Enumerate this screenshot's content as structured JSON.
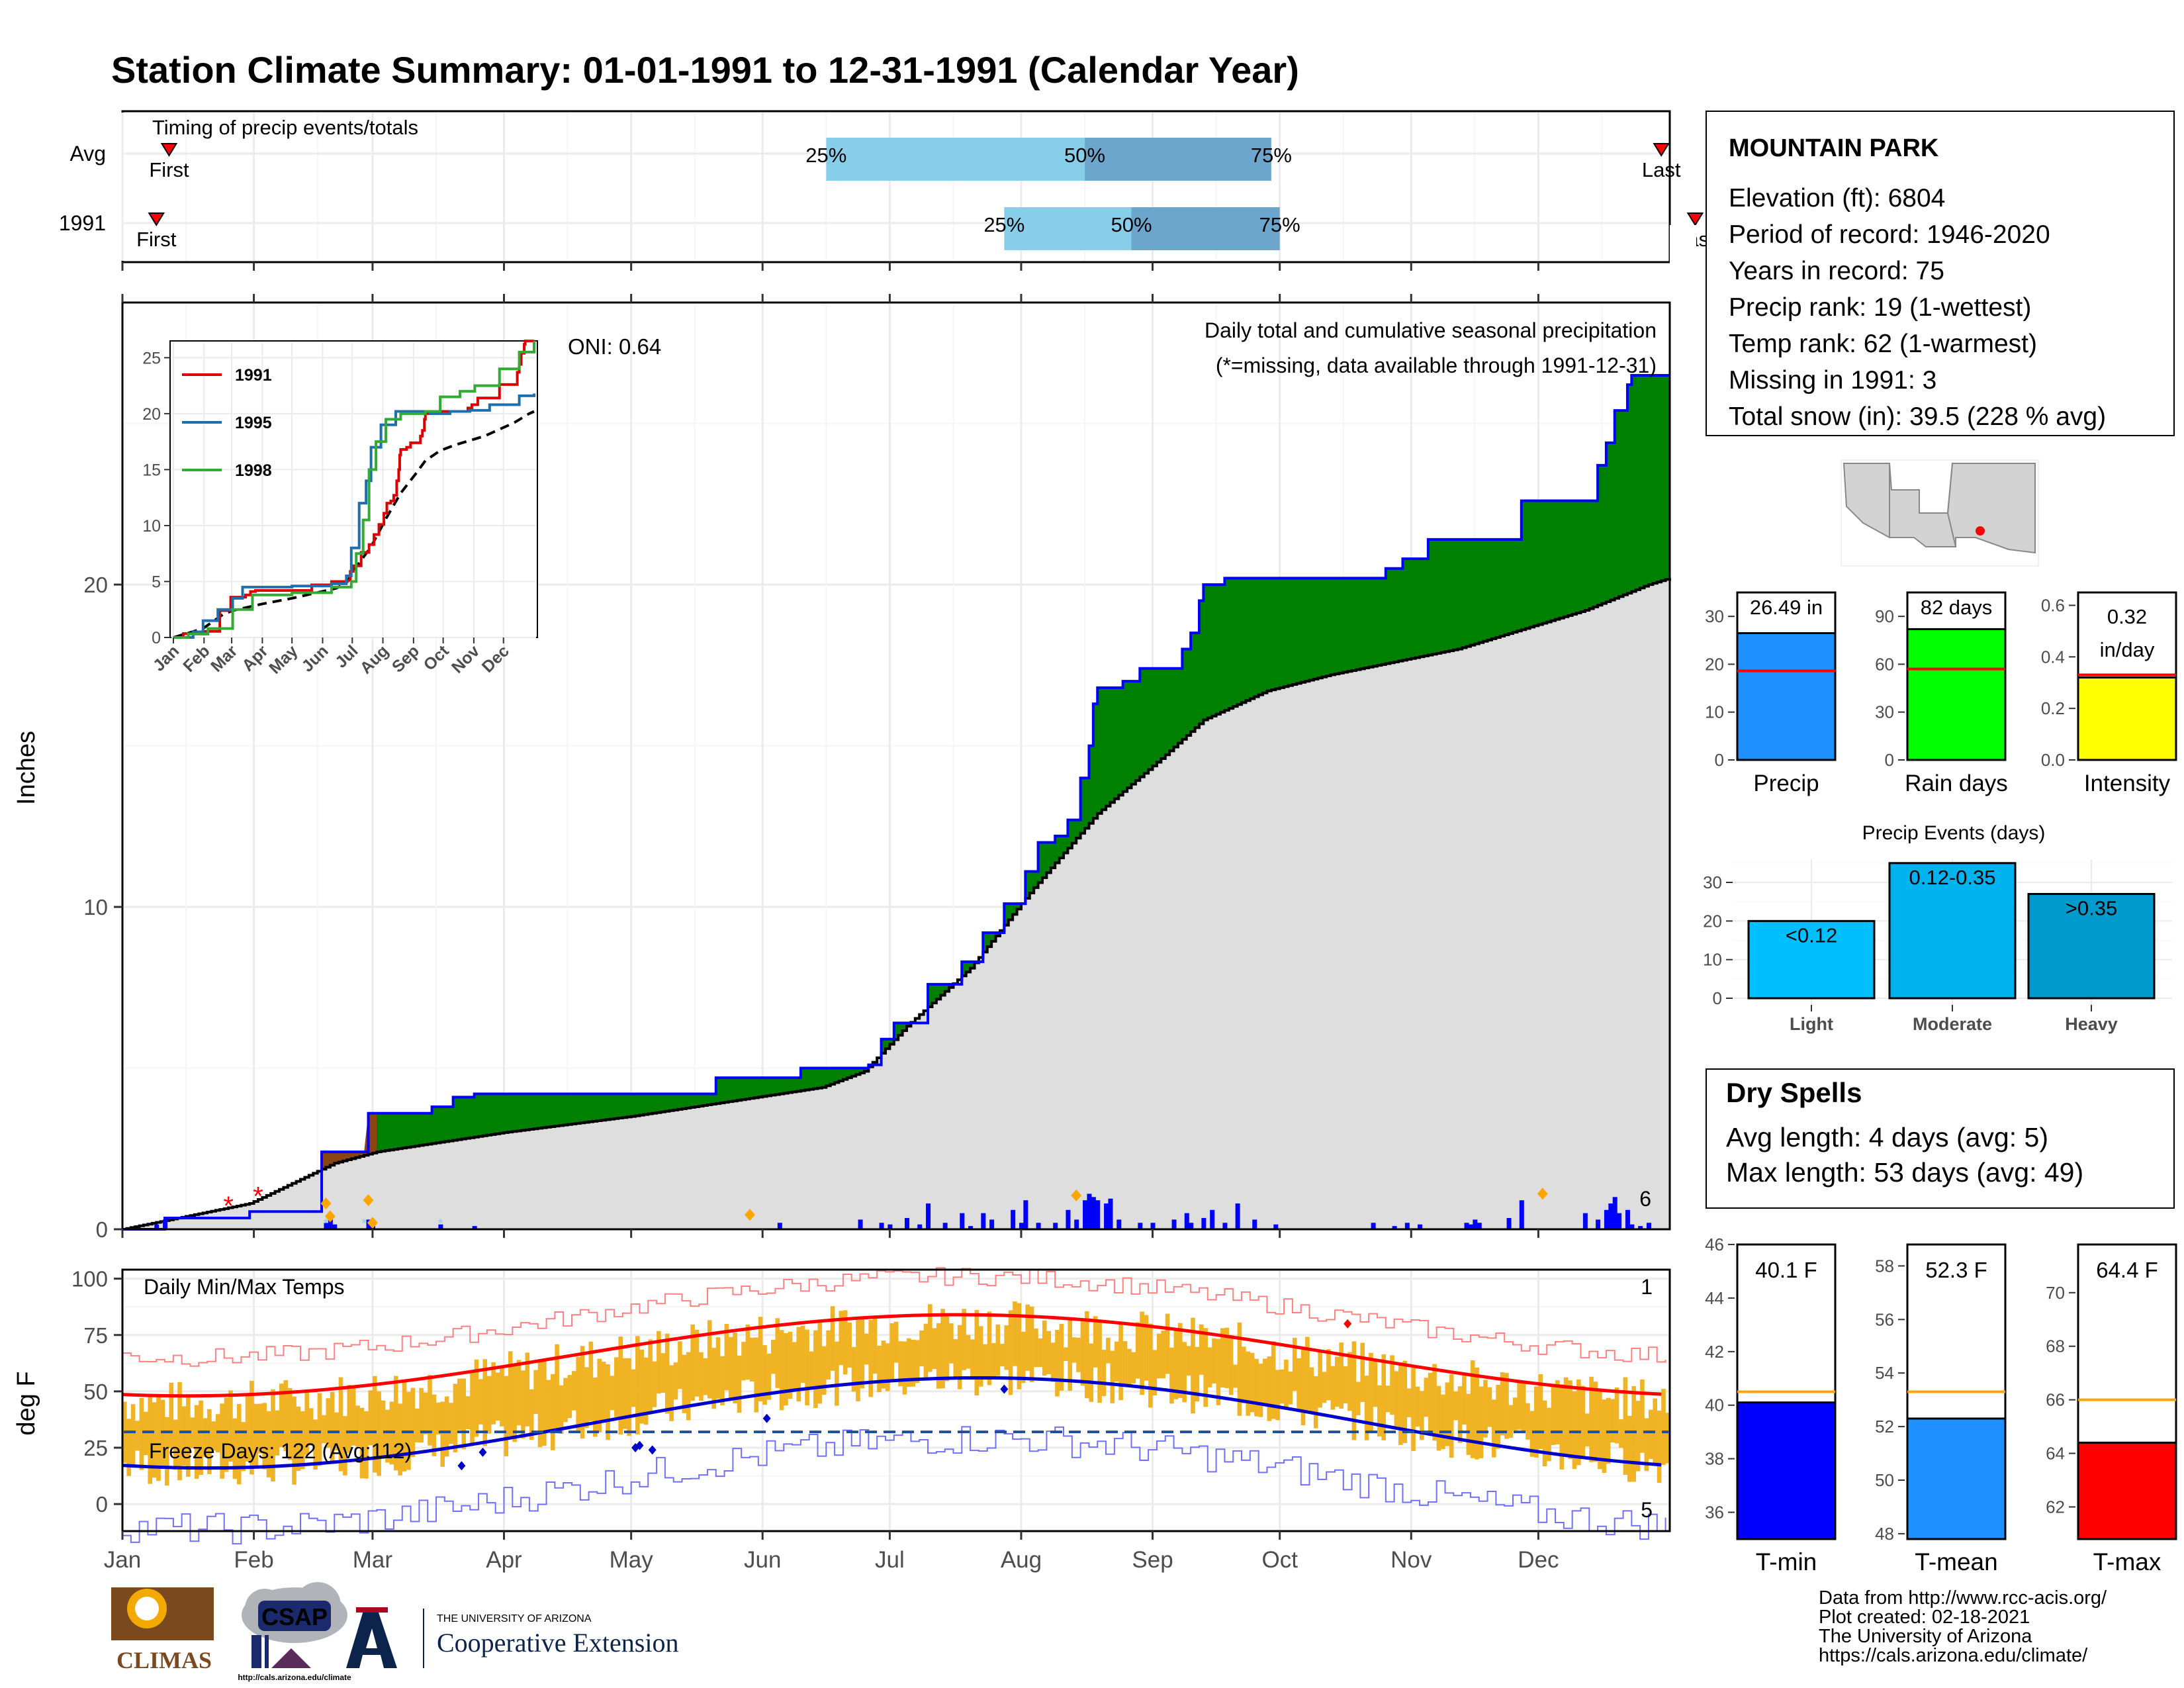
{
  "title": "Station Climate Summary: 01-01-1991 to 12-31-1991 (Calendar Year)",
  "colors": {
    "title": "#000080",
    "cum_green": "#008000",
    "avg_gray": "#dedede",
    "deficit_brown": "#8b4513",
    "bar_blue": "#0000ff",
    "temp_bar": "#f0b323",
    "tmax_line": "#ff0000",
    "tmin_line": "#0000cc",
    "dry_text": "#a52a2a",
    "light_blue": "#87ceeb",
    "steel_blue": "#6ca6cd"
  },
  "timing": {
    "panel_title": "Timing of precip events/totals",
    "rows": [
      {
        "label": "Avg",
        "first": "First",
        "last": "Last",
        "p25": "25%",
        "p50": "50%",
        "p75": "75%"
      },
      {
        "label": "1991",
        "first": "First",
        "last": "Last",
        "p25": "25%",
        "p50": "50%",
        "p75": "75%"
      }
    ],
    "avg_day": {
      "first": 11,
      "p25": 166,
      "p50": 227,
      "p75": 271,
      "last": 363
    },
    "yr_day": {
      "first": 8,
      "p25": 208,
      "p50": 238,
      "p75": 273,
      "last": 371
    }
  },
  "precip": {
    "title": "Daily total and cumulative seasonal precipitation",
    "missing_note": "(*=missing, data available through 1991-12-31)",
    "oni": "ONI: 0.64",
    "ylabel": "Inches",
    "yticks": [
      "0",
      "10",
      "20"
    ],
    "count_label": "6",
    "cum_1991": [
      [
        0,
        0
      ],
      [
        10,
        0
      ],
      [
        10,
        0.35
      ],
      [
        30,
        0.35
      ],
      [
        30,
        0.55
      ],
      [
        47,
        0.55
      ],
      [
        47,
        2.4
      ],
      [
        58,
        2.4
      ],
      [
        58,
        3.6
      ],
      [
        73,
        3.6
      ],
      [
        73,
        3.8
      ],
      [
        78,
        3.8
      ],
      [
        78,
        4.1
      ],
      [
        83,
        4.1
      ],
      [
        83,
        4.2
      ],
      [
        140,
        4.2
      ],
      [
        140,
        4.7
      ],
      [
        160,
        4.7
      ],
      [
        160,
        5.0
      ],
      [
        176,
        5.0
      ],
      [
        176,
        5.1
      ],
      [
        179,
        5.1
      ],
      [
        179,
        5.9
      ],
      [
        182,
        5.9
      ],
      [
        182,
        6.4
      ],
      [
        190,
        6.4
      ],
      [
        190,
        7.6
      ],
      [
        198,
        7.6
      ],
      [
        198,
        8.3
      ],
      [
        203,
        8.3
      ],
      [
        203,
        9.2
      ],
      [
        208,
        9.2
      ],
      [
        208,
        10.1
      ],
      [
        213,
        10.1
      ],
      [
        213,
        11.1
      ],
      [
        216,
        11.1
      ],
      [
        216,
        12.0
      ],
      [
        220,
        12.0
      ],
      [
        220,
        12.2
      ],
      [
        223,
        12.2
      ],
      [
        223,
        12.7
      ],
      [
        226,
        12.7
      ],
      [
        226,
        14.0
      ],
      [
        228,
        14.0
      ],
      [
        228,
        15.0
      ],
      [
        229,
        15.0
      ],
      [
        229,
        16.3
      ],
      [
        230,
        16.3
      ],
      [
        230,
        16.8
      ],
      [
        236,
        16.8
      ],
      [
        236,
        17.0
      ],
      [
        240,
        17.0
      ],
      [
        240,
        17.4
      ],
      [
        250,
        17.4
      ],
      [
        250,
        18.0
      ],
      [
        252,
        18.0
      ],
      [
        252,
        18.5
      ],
      [
        254,
        18.5
      ],
      [
        254,
        19.5
      ],
      [
        255,
        19.5
      ],
      [
        255,
        20.0
      ],
      [
        260,
        20.0
      ],
      [
        260,
        20.2
      ],
      [
        298,
        20.2
      ],
      [
        298,
        20.5
      ],
      [
        302,
        20.5
      ],
      [
        302,
        20.8
      ],
      [
        308,
        20.8
      ],
      [
        308,
        21.4
      ],
      [
        330,
        21.4
      ],
      [
        330,
        22.6
      ],
      [
        348,
        22.6
      ],
      [
        348,
        23.7
      ],
      [
        350,
        23.7
      ],
      [
        350,
        24.4
      ],
      [
        352,
        24.4
      ],
      [
        352,
        25.4
      ],
      [
        355,
        25.4
      ],
      [
        355,
        26.2
      ],
      [
        356,
        26.2
      ],
      [
        356,
        26.49
      ],
      [
        365,
        26.49
      ]
    ],
    "avg_cum": [
      [
        0,
        0
      ],
      [
        30,
        0.8
      ],
      [
        50,
        2.05
      ],
      [
        60,
        2.4
      ],
      [
        90,
        3.0
      ],
      [
        120,
        3.5
      ],
      [
        150,
        4.1
      ],
      [
        165,
        4.4
      ],
      [
        175,
        4.9
      ],
      [
        185,
        6.3
      ],
      [
        200,
        8.1
      ],
      [
        215,
        10.6
      ],
      [
        230,
        12.9
      ],
      [
        245,
        14.6
      ],
      [
        255,
        15.8
      ],
      [
        270,
        16.7
      ],
      [
        285,
        17.2
      ],
      [
        300,
        17.6
      ],
      [
        315,
        18.0
      ],
      [
        330,
        18.6
      ],
      [
        345,
        19.2
      ],
      [
        360,
        20.0
      ],
      [
        365,
        20.2
      ]
    ],
    "daily_bars": [
      [
        8,
        0.15
      ],
      [
        10,
        0.3
      ],
      [
        48,
        0.2
      ],
      [
        49,
        0.35
      ],
      [
        50,
        0.15
      ],
      [
        58,
        0.3
      ],
      [
        59,
        0.1
      ],
      [
        75,
        0.15
      ],
      [
        83,
        0.1
      ],
      [
        155,
        0.2
      ],
      [
        174,
        0.3
      ],
      [
        179,
        0.2
      ],
      [
        181,
        0.15
      ],
      [
        185,
        0.35
      ],
      [
        188,
        0.15
      ],
      [
        190,
        0.8
      ],
      [
        194,
        0.2
      ],
      [
        198,
        0.5
      ],
      [
        200,
        0.1
      ],
      [
        203,
        0.5
      ],
      [
        205,
        0.3
      ],
      [
        210,
        0.6
      ],
      [
        212,
        0.2
      ],
      [
        213,
        0.9
      ],
      [
        216,
        0.2
      ],
      [
        220,
        0.2
      ],
      [
        223,
        0.6
      ],
      [
        225,
        0.3
      ],
      [
        227,
        0.9
      ],
      [
        228,
        1.1
      ],
      [
        229,
        1.0
      ],
      [
        230,
        0.9
      ],
      [
        232,
        0.8
      ],
      [
        233,
        0.95
      ],
      [
        235,
        0.3
      ],
      [
        240,
        0.2
      ],
      [
        243,
        0.2
      ],
      [
        248,
        0.3
      ],
      [
        251,
        0.5
      ],
      [
        252,
        0.2
      ],
      [
        255,
        0.35
      ],
      [
        257,
        0.6
      ],
      [
        260,
        0.2
      ],
      [
        263,
        0.8
      ],
      [
        267,
        0.3
      ],
      [
        272,
        0.15
      ],
      [
        295,
        0.2
      ],
      [
        300,
        0.1
      ],
      [
        303,
        0.2
      ],
      [
        306,
        0.15
      ],
      [
        317,
        0.2
      ],
      [
        318,
        0.15
      ],
      [
        319,
        0.3
      ],
      [
        320,
        0.2
      ],
      [
        327,
        0.35
      ],
      [
        330,
        0.9
      ],
      [
        345,
        0.5
      ],
      [
        348,
        0.3
      ],
      [
        350,
        0.6
      ],
      [
        351,
        0.8
      ],
      [
        352,
        1.0
      ],
      [
        353,
        0.5
      ],
      [
        355,
        0.6
      ],
      [
        356,
        0.15
      ],
      [
        358,
        0.1
      ],
      [
        360,
        0.2
      ]
    ],
    "event_markers": [
      [
        48,
        0.8
      ],
      [
        58,
        0.9
      ],
      [
        59,
        0.2
      ],
      [
        49,
        0.4
      ],
      [
        148,
        0.45
      ],
      [
        225,
        1.05
      ],
      [
        335,
        1.1
      ]
    ],
    "missing_markers": [
      [
        25,
        0.7
      ],
      [
        32,
        1.0
      ]
    ]
  },
  "temps": {
    "title": "Daily Min/Max Temps",
    "ylabel": "deg F",
    "yticks": [
      "0",
      "25",
      "50",
      "75",
      "100"
    ],
    "freeze": "Freeze Days: 122 (Avg:112)",
    "count_hi": "1",
    "count_lo": "5",
    "freeze_line": 32
  },
  "months": [
    "Jan",
    "Feb",
    "Mar",
    "Apr",
    "May",
    "Jun",
    "Jul",
    "Aug",
    "Sep",
    "Oct",
    "Nov",
    "Dec"
  ],
  "inset": {
    "series": [
      {
        "name": "1991",
        "color": "#dd0000"
      },
      {
        "name": "1995",
        "color": "#1f6fae"
      },
      {
        "name": "1998",
        "color": "#33aa33"
      }
    ],
    "yticks": [
      "0",
      "5",
      "10",
      "15",
      "20",
      "25"
    ],
    "months": [
      "Jan",
      "Feb",
      "Mar",
      "Apr",
      "May",
      "Jun",
      "Jul",
      "Aug",
      "Sep",
      "Oct",
      "Nov",
      "Dec"
    ]
  },
  "station": {
    "name": "MOUNTAIN PARK",
    "lines": [
      "Elevation (ft): 6804",
      "Period of record: 1946-2020",
      "Years in record: 75",
      "Precip rank: 19 (1-wettest)",
      "Temp rank: 62 (1-warmest)",
      "Missing in 1991: 3",
      "Total snow (in): 39.5 (228 % avg)"
    ]
  },
  "summary_bars": [
    {
      "label": "Precip",
      "value_text": "26.49 in",
      "value": 26.49,
      "avg": 18.6,
      "ymax": 35,
      "ticks": [
        "0",
        "10",
        "20",
        "30"
      ],
      "tick_vals": [
        0,
        10,
        20,
        30
      ],
      "color": "#1e90ff"
    },
    {
      "label": "Rain days",
      "value_text": "82 days",
      "value": 82,
      "avg": 57,
      "ymax": 105,
      "ticks": [
        "0",
        "30",
        "60",
        "90"
      ],
      "tick_vals": [
        0,
        30,
        60,
        90
      ],
      "color": "#00ff00"
    },
    {
      "label": "Intensity",
      "value_text": "0.32",
      "value_text2": "in/day",
      "value": 0.32,
      "avg": 0.33,
      "ymax": 0.65,
      "ticks": [
        "0.0",
        "0.2",
        "0.4",
        "0.6"
      ],
      "tick_vals": [
        0,
        0.2,
        0.4,
        0.6
      ],
      "color": "#ffff00"
    }
  ],
  "events": {
    "title": "Precip Events (days)",
    "ticks": [
      "0",
      "10",
      "20",
      "30"
    ],
    "bars": [
      {
        "cat": "Light",
        "label": "<0.12",
        "value": 20,
        "color": "#00bfff"
      },
      {
        "cat": "Moderate",
        "label": "0.12-0.35",
        "value": 35,
        "color": "#00b2ee"
      },
      {
        "cat": "Heavy",
        "label": ">0.35",
        "value": 27,
        "color": "#009acd"
      }
    ]
  },
  "dry": {
    "title": "Dry Spells",
    "line1": "Avg length: 4 days (avg: 5)",
    "line2": "Max length: 53 days (avg: 49)"
  },
  "temp_bars": [
    {
      "label": "T-min",
      "value_text": "40.1 F",
      "value": 40.1,
      "avg": 40.5,
      "ymin": 35,
      "ymax": 46,
      "ticks": [
        "36",
        "38",
        "40",
        "42",
        "44",
        "46"
      ],
      "tick_vals": [
        36,
        38,
        40,
        42,
        44,
        46
      ],
      "color": "#0000ff"
    },
    {
      "label": "T-mean",
      "value_text": "52.3 F",
      "value": 52.3,
      "avg": 53.3,
      "ymin": 47.8,
      "ymax": 58.8,
      "ticks": [
        "48",
        "50",
        "52",
        "54",
        "56",
        "58"
      ],
      "tick_vals": [
        48,
        50,
        52,
        54,
        56,
        58
      ],
      "color": "#1e90ff"
    },
    {
      "label": "T-max",
      "value_text": "64.4 F",
      "value": 64.4,
      "avg": 66.0,
      "ymin": 60.8,
      "ymax": 71.8,
      "ticks": [
        "62",
        "64",
        "66",
        "68",
        "70"
      ],
      "tick_vals": [
        62,
        64,
        66,
        68,
        70
      ],
      "color": "#ff0000"
    }
  ],
  "footer": {
    "lines": [
      "Data from http://www.rcc-acis.org/",
      "Plot created: 02-18-2021",
      "The University of Arizona",
      "https://cals.arizona.edu/climate/"
    ]
  },
  "logos": {
    "climas": "CLIMAS",
    "csap": "CSAP",
    "csap_url": "http://cals.arizona.edu/climate",
    "ua_small": "THE UNIVERSITY OF ARIZONA",
    "ua_big": "Cooperative Extension"
  }
}
